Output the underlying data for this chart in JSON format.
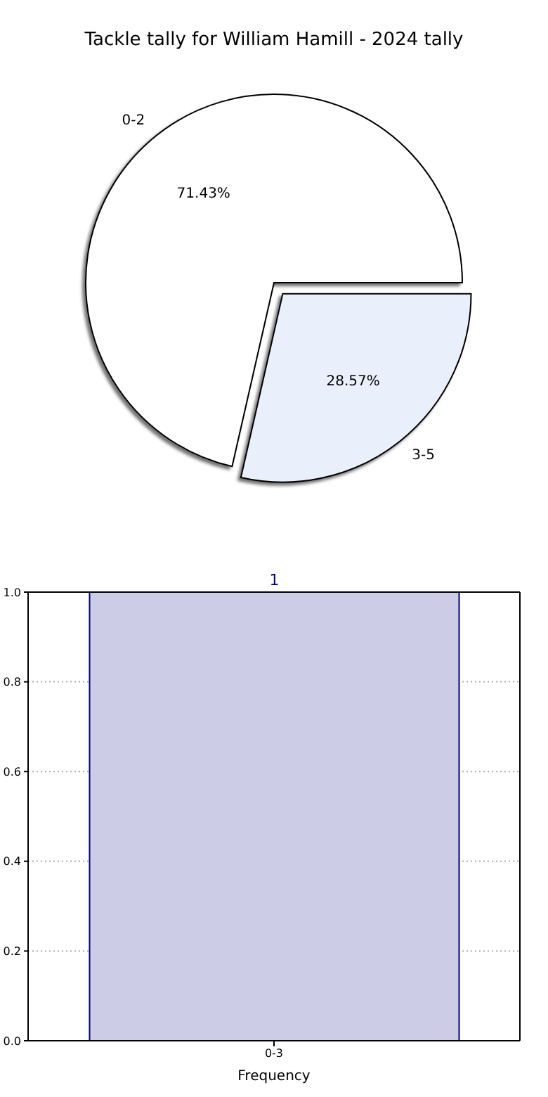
{
  "chart_data": [
    {
      "type": "pie",
      "title": "Tackle tally for William Hamill - 2024 tally",
      "categories": [
        "0-2",
        "3-5"
      ],
      "values": [
        71.43,
        28.57
      ],
      "colors": [
        "#ffffff",
        "#eaf0fb"
      ],
      "value_labels": [
        "71.43%",
        "28.57%"
      ]
    },
    {
      "type": "bar",
      "xlabel": "Frequency",
      "categories": [
        "0-3"
      ],
      "values": [
        1
      ],
      "color": "#cccce6",
      "ylim": [
        0,
        1
      ],
      "yticks": [
        {
          "value": 0,
          "label": "0.0"
        },
        0.2,
        0.4,
        0.6,
        0.8,
        {
          "value": 1,
          "label": "1.0"
        }
      ],
      "grid": true,
      "data_labels": true
    }
  ]
}
